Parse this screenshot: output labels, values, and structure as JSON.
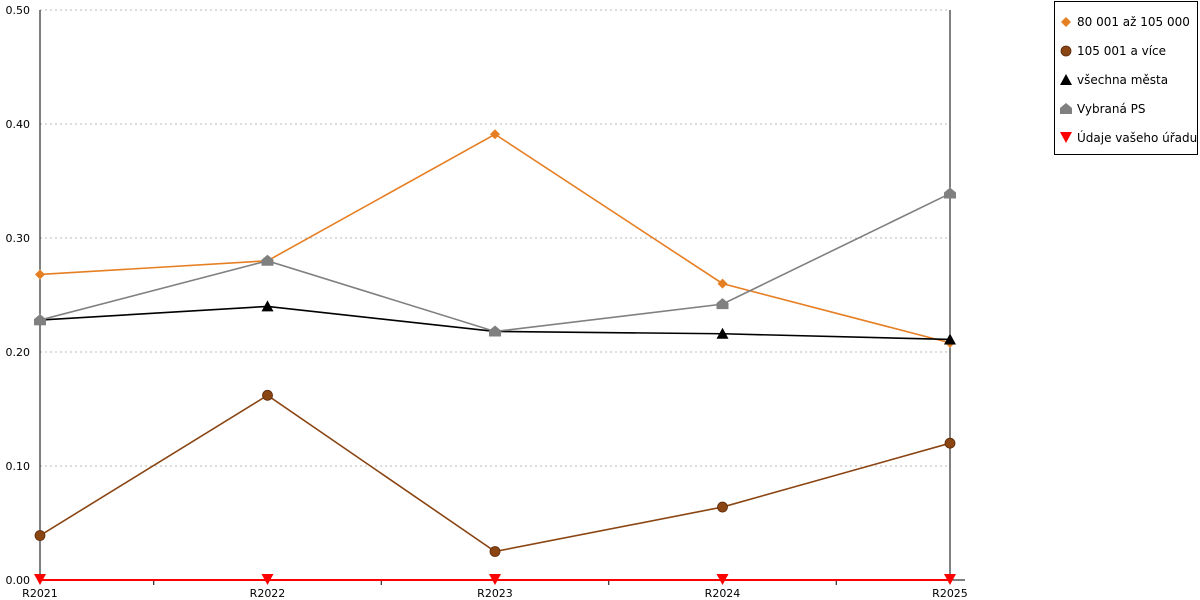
{
  "chart_data": {
    "type": "line",
    "categories": [
      "R2021",
      "R2022",
      "R2023",
      "R2024",
      "R2025"
    ],
    "ylim": [
      0,
      0.5
    ],
    "yticks": [
      "0.00",
      "0.10",
      "0.20",
      "0.30",
      "0.40",
      "0.50"
    ],
    "grid": true,
    "legend_position": "top-right",
    "series": [
      {
        "name": "80 001 až 105 000",
        "values": [
          0.268,
          0.28,
          0.391,
          0.26,
          0.208
        ],
        "color": "#e67e22",
        "marker": "diamond"
      },
      {
        "name": "105 001 a více",
        "values": [
          0.039,
          0.162,
          0.025,
          0.064,
          0.12
        ],
        "color": "#8b4513",
        "marker": "circle"
      },
      {
        "name": "všechna města",
        "values": [
          0.228,
          0.24,
          0.218,
          0.216,
          0.211
        ],
        "color": "#000000",
        "marker": "triangle-up"
      },
      {
        "name": "Vybraná PS",
        "values": [
          0.228,
          0.28,
          0.218,
          0.242,
          0.339
        ],
        "color": "#808080",
        "marker": "house"
      },
      {
        "name": "Údaje vašeho úřadu",
        "values": [
          0,
          0,
          0,
          0,
          0
        ],
        "color": "#ff0000",
        "marker": "triangle-down"
      }
    ]
  }
}
